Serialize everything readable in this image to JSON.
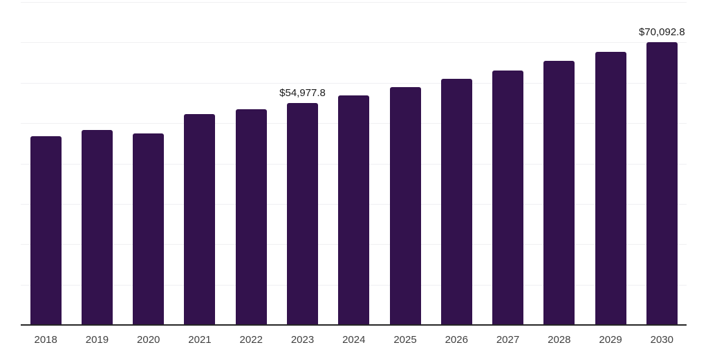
{
  "chart_data": {
    "type": "bar",
    "title": "",
    "xlabel": "",
    "ylabel": "",
    "categories": [
      "2018",
      "2019",
      "2020",
      "2021",
      "2022",
      "2023",
      "2024",
      "2025",
      "2026",
      "2027",
      "2028",
      "2029",
      "2030"
    ],
    "values": [
      46800,
      48300,
      47400,
      52300,
      53500,
      54977.8,
      56900,
      58900,
      61000,
      63100,
      65400,
      67700,
      70092.8
    ],
    "value_labels": [
      {
        "index": 5,
        "category": "2023",
        "text": "$54,977.8"
      },
      {
        "index": 12,
        "category": "2030",
        "text": "$70,092.8"
      }
    ],
    "ylim": [
      0,
      80000
    ],
    "gridline_interval": 10000,
    "grid": true,
    "legend": false,
    "y_tick_labels_visible": false,
    "colors": {
      "bar": "#33124d",
      "gridline": "#f0f0f2",
      "axis_line": "#262626",
      "tick_label_text": "#404040",
      "value_label_text": "#1a1a1a",
      "background": "#ffffff"
    }
  }
}
